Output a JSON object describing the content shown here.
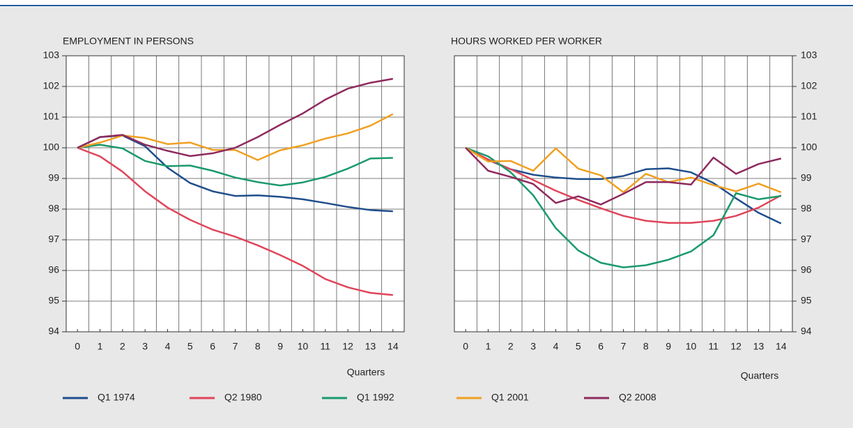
{
  "chart_data": [
    {
      "type": "line",
      "title": "EMPLOYMENT IN PERSONS",
      "xlabel": "Quarters",
      "yaxis_side": "left",
      "x": [
        0,
        1,
        2,
        3,
        4,
        5,
        6,
        7,
        8,
        9,
        10,
        11,
        12,
        13,
        14
      ],
      "xlim": [
        -0.5,
        14.5
      ],
      "xticks": [
        0,
        1,
        2,
        3,
        4,
        5,
        6,
        7,
        8,
        9,
        10,
        11,
        12,
        13,
        14
      ],
      "ylim": [
        94,
        103
      ],
      "yticks": [
        94,
        95,
        96,
        97,
        98,
        99,
        100,
        101,
        102,
        103
      ],
      "grid": true,
      "series": [
        {
          "name": "Q1 1974",
          "color": "#1f4e8c",
          "values": [
            100,
            100.35,
            100.4,
            100.05,
            99.35,
            98.85,
            98.58,
            98.43,
            98.45,
            98.4,
            98.32,
            98.2,
            98.07,
            97.97,
            97.93
          ]
        },
        {
          "name": "Q2 1980",
          "color": "#e0455a",
          "values": [
            100,
            99.72,
            99.22,
            98.58,
            98.05,
            97.65,
            97.33,
            97.1,
            96.82,
            96.5,
            96.15,
            95.72,
            95.45,
            95.27,
            95.2
          ]
        },
        {
          "name": "Q1 1992",
          "color": "#1a9a6c",
          "values": [
            100,
            100.1,
            99.98,
            99.57,
            99.4,
            99.42,
            99.25,
            99.03,
            98.88,
            98.77,
            98.87,
            99.05,
            99.32,
            99.65,
            99.67
          ]
        },
        {
          "name": "Q1 2001",
          "color": "#f0a020",
          "values": [
            100,
            100.17,
            100.4,
            100.32,
            100.12,
            100.17,
            99.93,
            99.93,
            99.6,
            99.92,
            100.08,
            100.3,
            100.47,
            100.72,
            101.1
          ]
        },
        {
          "name": "Q2 2008",
          "color": "#8e2a5e",
          "values": [
            100,
            100.35,
            100.42,
            100.1,
            99.9,
            99.73,
            99.82,
            100.0,
            100.35,
            100.75,
            101.12,
            101.57,
            101.93,
            102.12,
            102.25
          ]
        }
      ]
    },
    {
      "type": "line",
      "title": "HOURS WORKED PER WORKER",
      "xlabel": "Quarters",
      "yaxis_side": "right",
      "x": [
        0,
        1,
        2,
        3,
        4,
        5,
        6,
        7,
        8,
        9,
        10,
        11,
        12,
        13,
        14
      ],
      "xlim": [
        -0.5,
        14.5
      ],
      "xticks": [
        0,
        1,
        2,
        3,
        4,
        5,
        6,
        7,
        8,
        9,
        10,
        11,
        12,
        13,
        14
      ],
      "ylim": [
        94,
        103
      ],
      "yticks": [
        94,
        95,
        96,
        97,
        98,
        99,
        100,
        101,
        102,
        103
      ],
      "grid": true,
      "series": [
        {
          "name": "Q1 1974",
          "color": "#1f4e8c",
          "values": [
            100,
            99.6,
            99.3,
            99.12,
            99.03,
            98.98,
            98.98,
            99.08,
            99.3,
            99.33,
            99.2,
            98.85,
            98.35,
            97.88,
            97.53
          ]
        },
        {
          "name": "Q2 1980",
          "color": "#e0455a",
          "values": [
            100,
            99.62,
            99.3,
            98.95,
            98.6,
            98.3,
            98.03,
            97.78,
            97.62,
            97.55,
            97.55,
            97.62,
            97.78,
            98.05,
            98.45
          ]
        },
        {
          "name": "Q1 1992",
          "color": "#1a9a6c",
          "values": [
            100,
            99.72,
            99.2,
            98.45,
            97.38,
            96.65,
            96.25,
            96.1,
            96.17,
            96.35,
            96.62,
            97.15,
            98.52,
            98.32,
            98.43
          ]
        },
        {
          "name": "Q1 2001",
          "color": "#f0a020",
          "values": [
            100,
            99.55,
            99.57,
            99.25,
            99.98,
            99.32,
            99.1,
            98.55,
            99.15,
            98.88,
            99.03,
            98.78,
            98.58,
            98.83,
            98.55
          ]
        },
        {
          "name": "Q2 2008",
          "color": "#8e2a5e",
          "values": [
            100,
            99.25,
            99.05,
            98.82,
            98.2,
            98.42,
            98.15,
            98.5,
            98.88,
            98.88,
            98.8,
            99.68,
            99.15,
            99.47,
            99.65
          ]
        }
      ]
    }
  ]
}
